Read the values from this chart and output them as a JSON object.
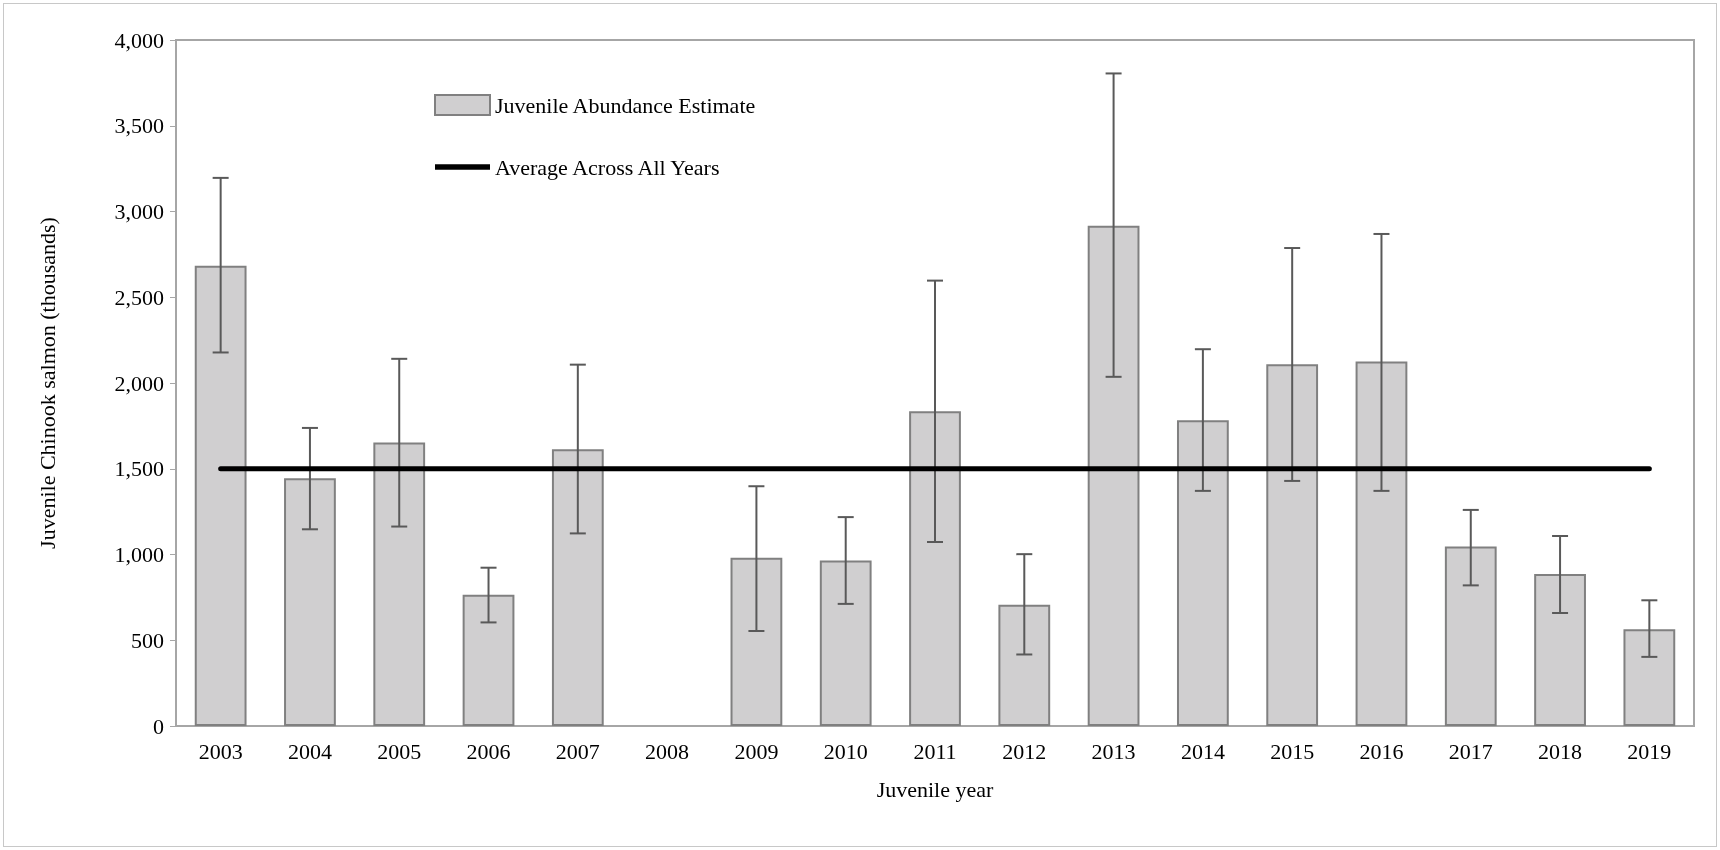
{
  "chart_data": {
    "type": "bar",
    "xlabel": "Juvenile year",
    "ylabel": "Juvenile Chinook salmon (thousands)",
    "categories": [
      "2003",
      "2004",
      "2005",
      "2006",
      "2007",
      "2008",
      "2009",
      "2010",
      "2011",
      "2012",
      "2013",
      "2014",
      "2015",
      "2016",
      "2017",
      "2018",
      "2019"
    ],
    "series": [
      {
        "name": "Juvenile Abundance Estimate",
        "color": "#d0cfd0",
        "values": [
          2684,
          1445,
          1653,
          765,
          1614,
          null,
          981,
          965,
          1835,
          707,
          2917,
          1783,
          2110,
          2125,
          1047,
          886,
          564
        ],
        "errors": [
          [
            2178,
            3196
          ],
          [
            1147,
            1738
          ],
          [
            1163,
            2141
          ],
          [
            604,
            923
          ],
          [
            1123,
            2107
          ],
          null,
          [
            554,
            1398
          ],
          [
            712,
            1218
          ],
          [
            1073,
            2597
          ],
          [
            417,
            1002
          ],
          [
            2036,
            3805
          ],
          [
            1371,
            2197
          ],
          [
            1429,
            2787
          ],
          [
            1371,
            2869
          ],
          [
            820,
            1260
          ],
          [
            659,
            1108
          ],
          [
            403,
            733
          ]
        ]
      },
      {
        "name": "Average Across All Years",
        "type": "line",
        "color": "#000000",
        "values": [
          1500,
          1500,
          1500,
          1500,
          1500,
          1500,
          1500,
          1500,
          1500,
          1500,
          1500,
          1500,
          1500,
          1500,
          1500,
          1500,
          1500
        ]
      }
    ],
    "ylim": [
      0,
      4000
    ],
    "yticks": [
      {
        "value": 0,
        "label": "0"
      },
      {
        "value": 500,
        "label": "500"
      },
      {
        "value": 1000,
        "label": "1,000"
      },
      {
        "value": 1500,
        "label": "1,500"
      },
      {
        "value": 2000,
        "label": "2,000"
      },
      {
        "value": 2500,
        "label": "2,500"
      },
      {
        "value": 3000,
        "label": "3,000"
      },
      {
        "value": 3500,
        "label": "3,500"
      },
      {
        "value": 4000,
        "label": "4,000"
      }
    ],
    "grid": false,
    "legend": "top left",
    "marker": "none",
    "line_style": "solid"
  }
}
